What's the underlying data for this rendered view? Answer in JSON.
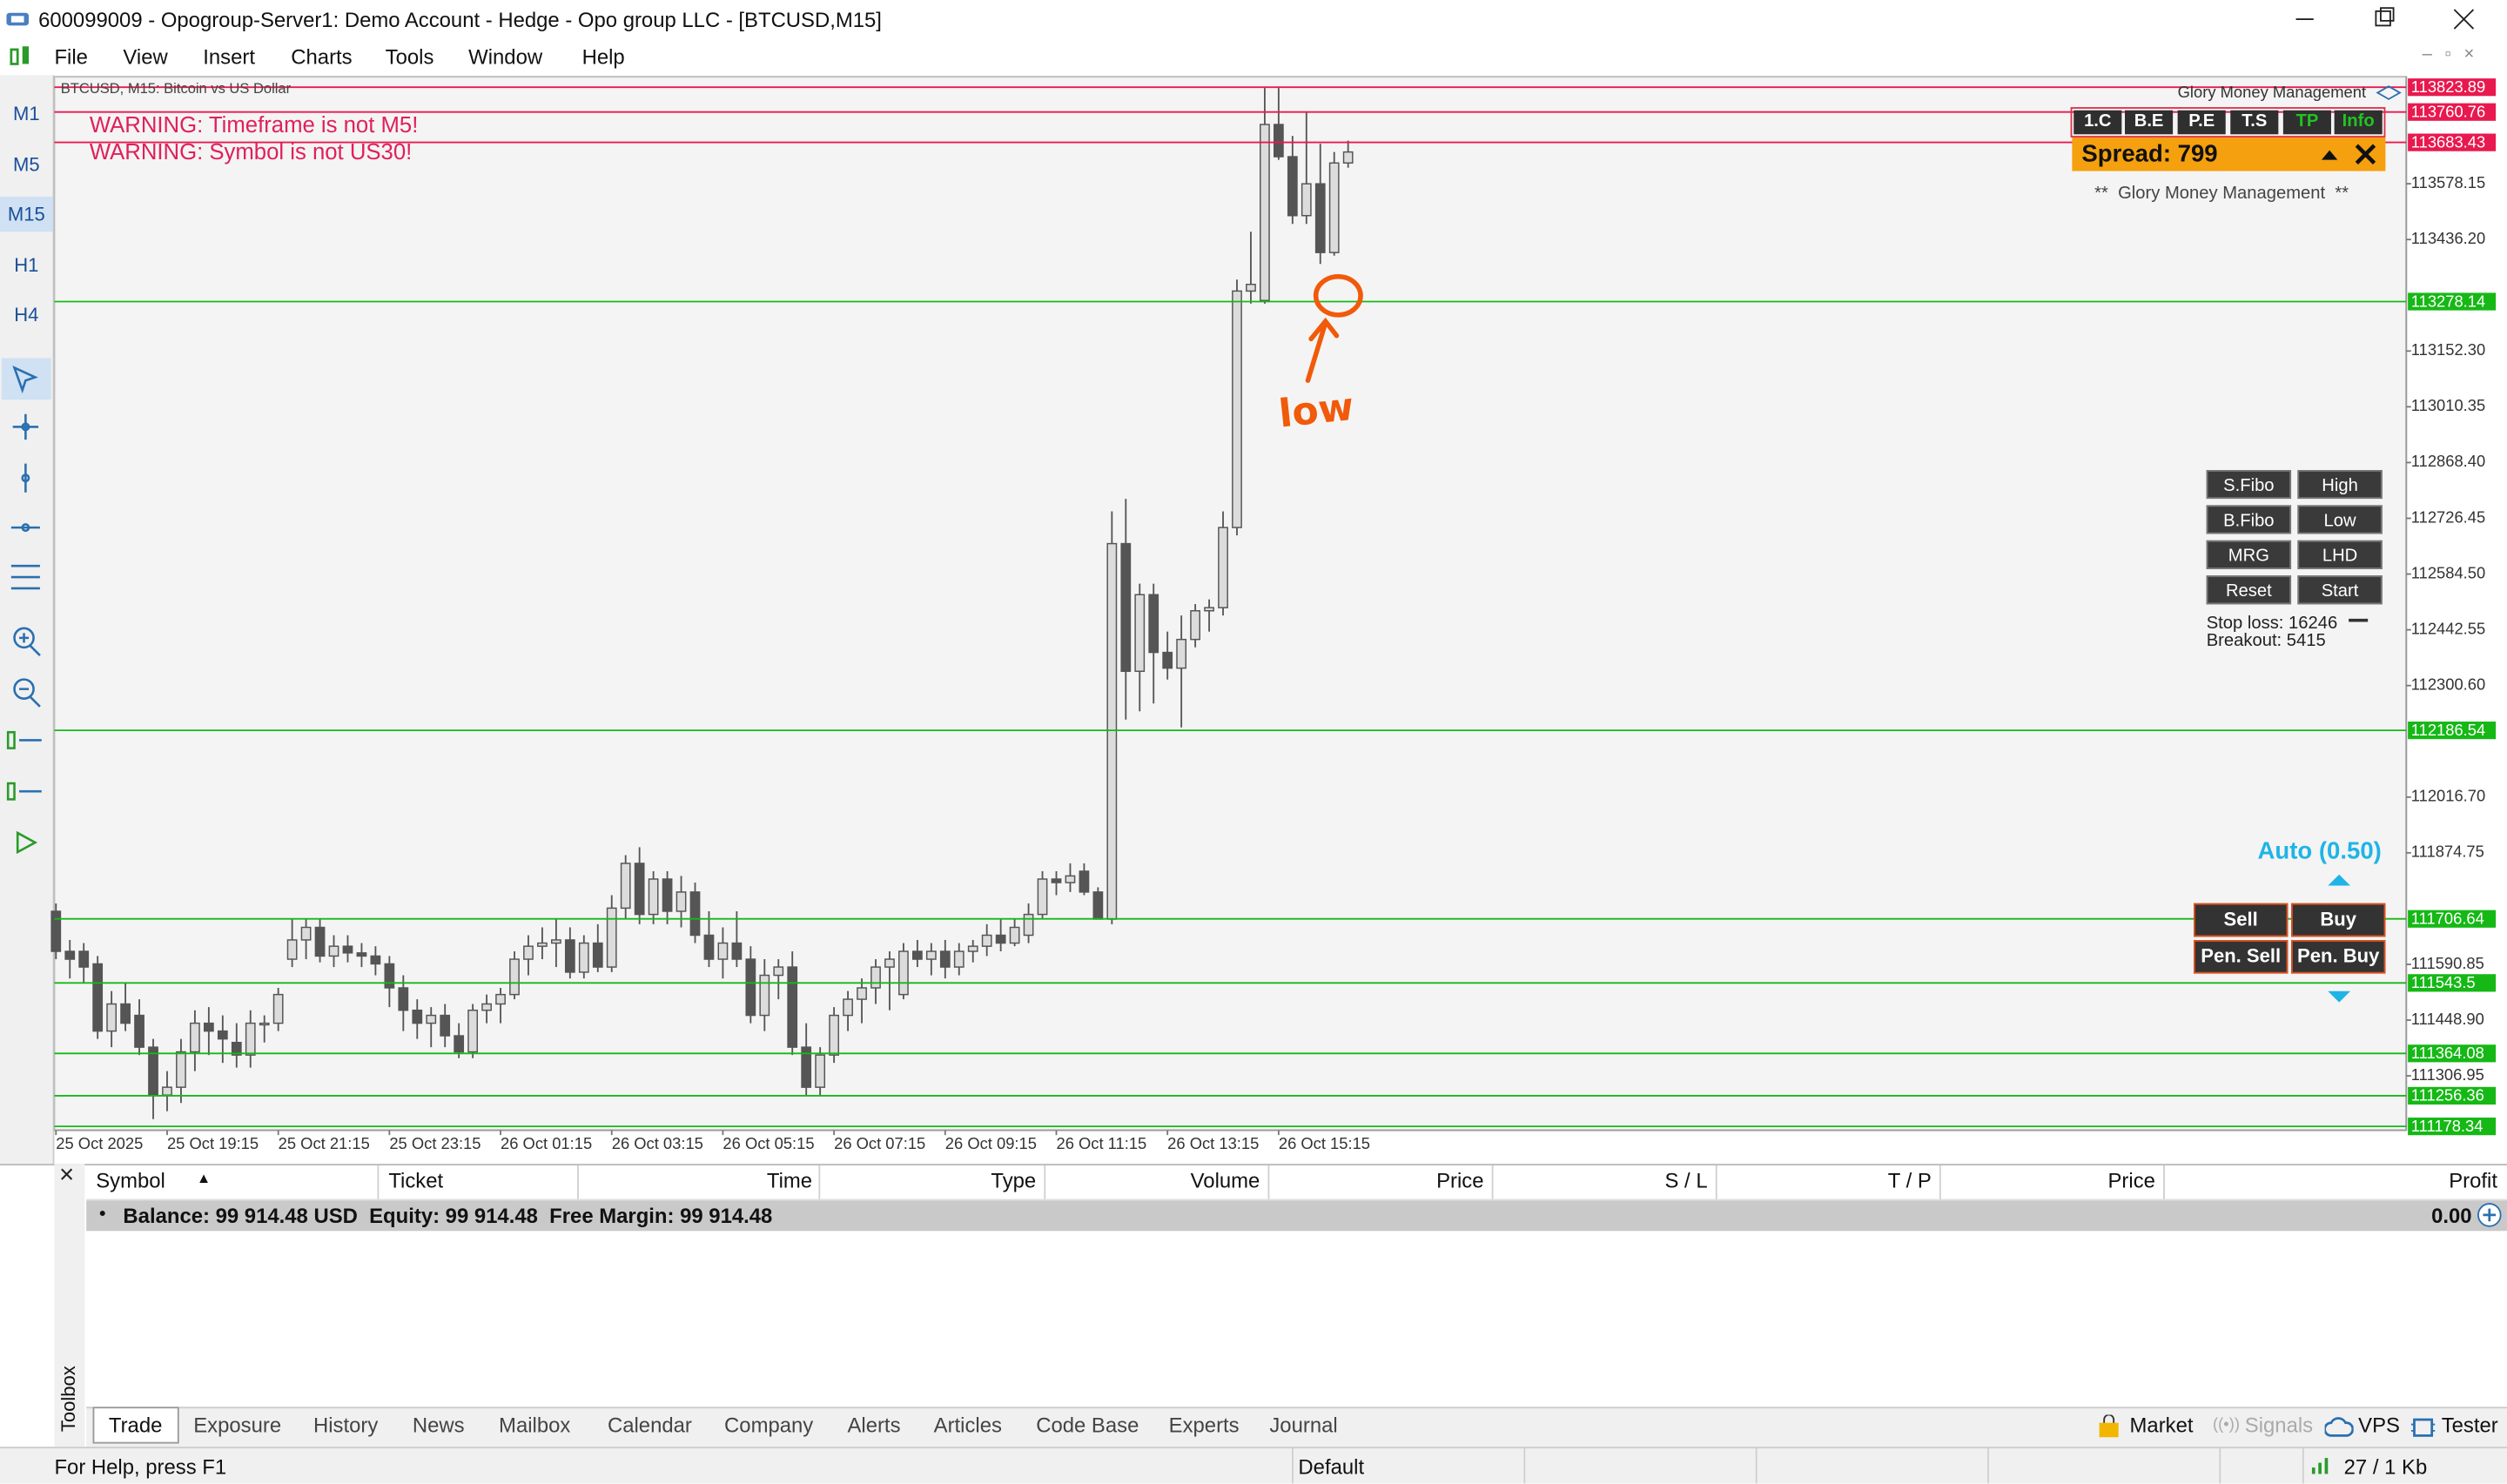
{
  "window": {
    "title": "600099009 - Opogroup-Server1: Demo Account - Hedge - Opo group LLC - [BTCUSD,M15]"
  },
  "menu": [
    "File",
    "View",
    "Insert",
    "Charts",
    "Tools",
    "Window",
    "Help"
  ],
  "timeframes": [
    "M1",
    "M5",
    "M15",
    "H1",
    "H4"
  ],
  "chart": {
    "type": "candlestick",
    "symbol_label": "BTCUSD, M15:  Bitcoin vs US Dollar",
    "warnings": [
      "WARNING: Timeframe is not M5!",
      "WARNING: Symbol is not US30!"
    ],
    "annotation": "low",
    "up_color": "#dcdcdc",
    "down_color": "#555555",
    "ylim": [
      111168.5,
      113850.6
    ],
    "yticks": [
      113578.15,
      {
        "value": 113436.2,
        "label": "113436.20"
      },
      {
        "value": 113152.3,
        "label": "113152.30"
      },
      113010.35,
      {
        "value": 112868.4,
        "label": "112868.40"
      },
      112726.45,
      {
        "value": 112584.5,
        "label": "112584.50"
      },
      112442.55,
      {
        "value": 112300.6,
        "label": "112300.60"
      },
      {
        "value": 112016.7,
        "label": "112016.70"
      },
      111874.75,
      111590.85,
      {
        "value": 111448.9,
        "label": "111448.90"
      },
      111306.95
    ],
    "x_labels": [
      "25 Oct 2025",
      "25 Oct 19:15",
      "25 Oct 21:15",
      "25 Oct 23:15",
      "26 Oct 01:15",
      "26 Oct 03:15",
      "26 Oct 05:15",
      "26 Oct 07:15",
      "26 Oct 09:15",
      "26 Oct 11:15",
      "26 Oct 13:15",
      "26 Oct 15:15"
    ],
    "red_levels": [
      113823.89,
      113760.76,
      113683.43
    ],
    "green_levels": [
      113278.14,
      112186.54,
      111706.64,
      111543.5,
      111364.08,
      111256.36,
      111178.34
    ],
    "red_color": "#e8194e",
    "green_color": "#16b816",
    "candles": [
      [
        111726,
        111746,
        111604,
        111624
      ],
      [
        111624,
        111653,
        111555,
        111604
      ],
      [
        111624,
        111645,
        111543,
        111584
      ],
      [
        111592,
        111612,
        111401,
        111421
      ],
      [
        111421,
        111523,
        111380,
        111490
      ],
      [
        111490,
        111543,
        111421,
        111441
      ],
      [
        111461,
        111502,
        111360,
        111380
      ],
      [
        111380,
        111401,
        111197,
        111258
      ],
      [
        111258,
        111319,
        111217,
        111278
      ],
      [
        111278,
        111401,
        111238,
        111368
      ],
      [
        111368,
        111474,
        111319,
        111441
      ],
      [
        111441,
        111482,
        111360,
        111421
      ],
      [
        111421,
        111461,
        111340,
        111401
      ],
      [
        111392,
        111441,
        111328,
        111360
      ],
      [
        111360,
        111474,
        111328,
        111441
      ],
      [
        111441,
        111461,
        111392,
        111441
      ],
      [
        111441,
        111531,
        111421,
        111514
      ],
      [
        111604,
        111706,
        111584,
        111653
      ],
      [
        111653,
        111706,
        111604,
        111685
      ],
      [
        111685,
        111706,
        111596,
        111612
      ],
      [
        111612,
        111665,
        111584,
        111637
      ],
      [
        111637,
        111665,
        111596,
        111620
      ],
      [
        111620,
        111645,
        111584,
        111612
      ],
      [
        111612,
        111637,
        111563,
        111592
      ],
      [
        111592,
        111612,
        111482,
        111531
      ],
      [
        111531,
        111563,
        111421,
        111474
      ],
      [
        111474,
        111502,
        111401,
        111441
      ],
      [
        111441,
        111482,
        111380,
        111461
      ],
      [
        111461,
        111490,
        111380,
        111409
      ],
      [
        111409,
        111441,
        111352,
        111368
      ],
      [
        111368,
        111490,
        111352,
        111474
      ],
      [
        111474,
        111514,
        111441,
        111490
      ],
      [
        111490,
        111531,
        111441,
        111514
      ],
      [
        111514,
        111624,
        111502,
        111604
      ],
      [
        111604,
        111665,
        111563,
        111637
      ],
      [
        111637,
        111685,
        111604,
        111645
      ],
      [
        111645,
        111706,
        111584,
        111653
      ],
      [
        111653,
        111685,
        111555,
        111571
      ],
      [
        111571,
        111665,
        111555,
        111645
      ],
      [
        111645,
        111693,
        111571,
        111584
      ],
      [
        111584,
        111767,
        111571,
        111734
      ],
      [
        111734,
        111869,
        111706,
        111848
      ],
      [
        111848,
        111889,
        111693,
        111718
      ],
      [
        111718,
        111828,
        111693,
        111808
      ],
      [
        111808,
        111828,
        111693,
        111726
      ],
      [
        111726,
        111816,
        111685,
        111775
      ],
      [
        111775,
        111799,
        111645,
        111665
      ],
      [
        111665,
        111726,
        111584,
        111604
      ],
      [
        111604,
        111685,
        111555,
        111645
      ],
      [
        111645,
        111726,
        111584,
        111604
      ],
      [
        111604,
        111637,
        111441,
        111461
      ],
      [
        111461,
        111604,
        111421,
        111563
      ],
      [
        111563,
        111604,
        111502,
        111584
      ],
      [
        111584,
        111624,
        111360,
        111380
      ],
      [
        111380,
        111441,
        111258,
        111278
      ],
      [
        111278,
        111380,
        111258,
        111360
      ],
      [
        111360,
        111482,
        111340,
        111461
      ],
      [
        111461,
        111523,
        111421,
        111502
      ],
      [
        111502,
        111555,
        111441,
        111531
      ],
      [
        111531,
        111604,
        111490,
        111584
      ],
      [
        111584,
        111624,
        111474,
        111604
      ],
      [
        111514,
        111645,
        111502,
        111624
      ],
      [
        111624,
        111653,
        111584,
        111604
      ],
      [
        111604,
        111645,
        111563,
        111624
      ],
      [
        111624,
        111653,
        111555,
        111584
      ],
      [
        111584,
        111645,
        111563,
        111624
      ],
      [
        111624,
        111653,
        111596,
        111637
      ],
      [
        111637,
        111693,
        111612,
        111665
      ],
      [
        111665,
        111706,
        111624,
        111645
      ],
      [
        111645,
        111706,
        111637,
        111685
      ],
      [
        111665,
        111746,
        111645,
        111718
      ],
      [
        111718,
        111828,
        111706,
        111808
      ],
      [
        111808,
        111828,
        111767,
        111799
      ],
      [
        111799,
        111848,
        111775,
        111816
      ],
      [
        111828,
        111848,
        111767,
        111775
      ],
      [
        111775,
        111787,
        111706,
        111706
      ],
      [
        111706,
        112744,
        111693,
        112662
      ],
      [
        112662,
        112776,
        112214,
        112337
      ],
      [
        112337,
        112560,
        112235,
        112532
      ],
      [
        112532,
        112560,
        112255,
        112385
      ],
      [
        112385,
        112438,
        112316,
        112345
      ],
      [
        112345,
        112479,
        112194,
        112418
      ],
      [
        112418,
        112508,
        112398,
        112491
      ],
      [
        112491,
        112520,
        112438,
        112499
      ],
      [
        112499,
        112744,
        112479,
        112703
      ],
      [
        112703,
        113334,
        112683,
        113305
      ],
      [
        113305,
        113456,
        113273,
        113322
      ],
      [
        113281,
        113822,
        113273,
        113729
      ],
      [
        113729,
        113822,
        113639,
        113647
      ],
      [
        113647,
        113700,
        113476,
        113497
      ],
      [
        113497,
        113761,
        113476,
        113578
      ],
      [
        113578,
        113680,
        113374,
        113403
      ],
      [
        113403,
        113659,
        113395,
        113631
      ],
      [
        113631,
        113688,
        113619,
        113659
      ]
    ]
  },
  "panel": {
    "brand": "Glory Money Management",
    "buttons": [
      "1.C",
      "B.E",
      "P.E",
      "T.S",
      "TP",
      "Info"
    ],
    "spread": "Spread: 799",
    "subtitle": "**  Glory Money Management  **"
  },
  "tools": {
    "buttons": [
      "S.Fibo",
      "High",
      "B.Fibo",
      "Low",
      "MRG",
      "LHD",
      "Reset",
      "Start"
    ],
    "stop_loss": "Stop loss: 16246",
    "breakout": "Breakout: 5415"
  },
  "trade": {
    "auto": "Auto (0.50)",
    "buttons": [
      "Sell",
      "Buy",
      "Pen. Sell",
      "Pen. Buy"
    ]
  },
  "toolbox": {
    "label": "Toolbox",
    "columns": [
      "Symbol",
      "Ticket",
      "Time",
      "Type",
      "Volume",
      "Price",
      "S / L",
      "T / P",
      "Price",
      "Profit"
    ],
    "balance": "Balance: 99 914.48 USD  Equity: 99 914.48  Free Margin: 99 914.48",
    "profit": "0.00",
    "tabs": [
      "Trade",
      "Exposure",
      "History",
      "News",
      "Mailbox",
      "Calendar",
      "Company",
      "Alerts",
      "Articles",
      "Code Base",
      "Experts",
      "Journal"
    ],
    "services": [
      "Market",
      "Signals",
      "VPS",
      "Tester"
    ]
  },
  "status": {
    "help": "For Help, press F1",
    "profile": "Default",
    "traffic": "27 / 1 Kb"
  }
}
